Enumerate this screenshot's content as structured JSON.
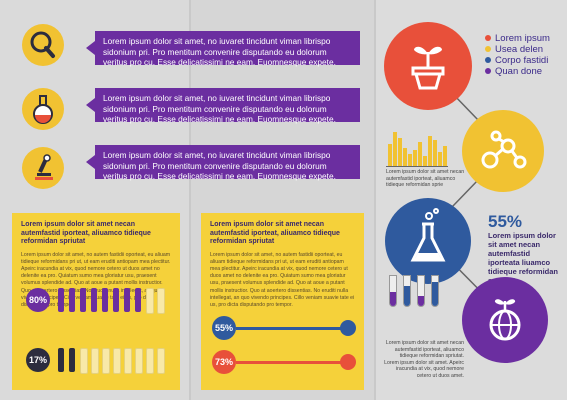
{
  "bubbles": [
    "Lorem ipsum dolor sit amet, no iuvaret tincidunt viman librispo sidonium pri. Pro mentitum convenire disputando eu dolorum veritus pro cu. Esse delicatissimi ne eam. Euomnesque expete.",
    "Lorem ipsum dolor sit amet, no iuvaret tincidunt viman librispo sidonium pri. Pro mentitum convenire disputando eu dolorum veritus pro cu. Esse delicatissimi ne eam. Euomnesque expete.",
    "Lorem ipsum dolor sit amet, no iuvaret tincidunt viman librispo sidonium pri. Pro mentitum convenire disputando eu dolorum veritus pro cu. Esse delicatissimi ne eam. Euomnesque expete."
  ],
  "box1": {
    "heading": "Lorem ipsum dolor sit amet necan autemfastid iporteat, aliuamco tidieque reformidan spriutat",
    "body": "Lorem ipsum dolor sit amet, no autem fastidii oporteat, eu aliuam tidieque reformidans pri ut, ut eam eruditi antiopam mea plectitur. Apeirc iracundia at vix, quod nemore cetero ut duos amet no delenite ea pro. Quiatum sumo mea gloriatur usu, praesent volumus splendide ad. Quo at aoue a putant mollis instructior. Quo at aoertero dissentias. No eruditi nulla intellegat, an quo vivendo principes. Cillo veniam suavie tate ei us, pro dicta disputando pro tempor.",
    "stats": [
      {
        "label": "80%",
        "value": 80
      },
      {
        "label": "17%",
        "value": 17
      }
    ]
  },
  "box2": {
    "heading": "Lorem ipsum dolor sit amet necan autemfastid iporteat, aliuamco tidieque reformidan spriutat",
    "body": "Lorem ipsum dolor sit amet, no autem fastidii oporteat, eu aliuam tidieque reformidans pri ut, ut eam eruditi antiopam mea plectitur. Apeirc iracundia at vix, quod nemore cetero ut duos amet no delenite ea pro. Quiatum sumo mea gloriatur usu, praesent volumus splendide ad. Quo at aoue a putant mollis instructior. Quo at aoertero dissentias. No eruditi nulla intellegat, an quo vivendo principes. Cillo veniam suavie tate ei us, pro dicta disputando pro tempor.",
    "stats": [
      {
        "label": "55%",
        "value": 55
      },
      {
        "label": "73%",
        "value": 73
      }
    ]
  },
  "legend": [
    {
      "label": "Lorem ipsum",
      "color": "#e8503a"
    },
    {
      "label": "Usea delen",
      "color": "#f1c232"
    },
    {
      "label": "Corpo fastidi",
      "color": "#2f5a9e"
    },
    {
      "label": "Quan done",
      "color": "#6b2ea0"
    }
  ],
  "mini_text_1": "Lorem ipsum dolor sit amet necan autemfastid iporteat, aliuamco tidieque reformidan sprie",
  "big_pct": "55%",
  "big_pct_text": "Lorem ipsum dolor sit amet necan autemfastid iporteata liuamco tidieque reformidan spriutat",
  "mini_text_2": "Lorem ipsum dolor sit amet necan autemfastid iporteat, aliuamco tidieque reformidan spriutat. Lorem ipsum dolor sit amet. Apeirc iracundia at vix, quod nemore cetero ut duos amet.",
  "colors": {
    "purple": "#6b2ea0",
    "yellow": "#f1c232",
    "red": "#e8503a",
    "blue": "#2f5a9e",
    "dark": "#2c2c3e"
  },
  "icons": [
    "magnifier-icon",
    "flask-icon",
    "microscope-icon",
    "plant-pot-icon",
    "molecule-icon",
    "beaker-icon",
    "globe-plant-icon"
  ]
}
